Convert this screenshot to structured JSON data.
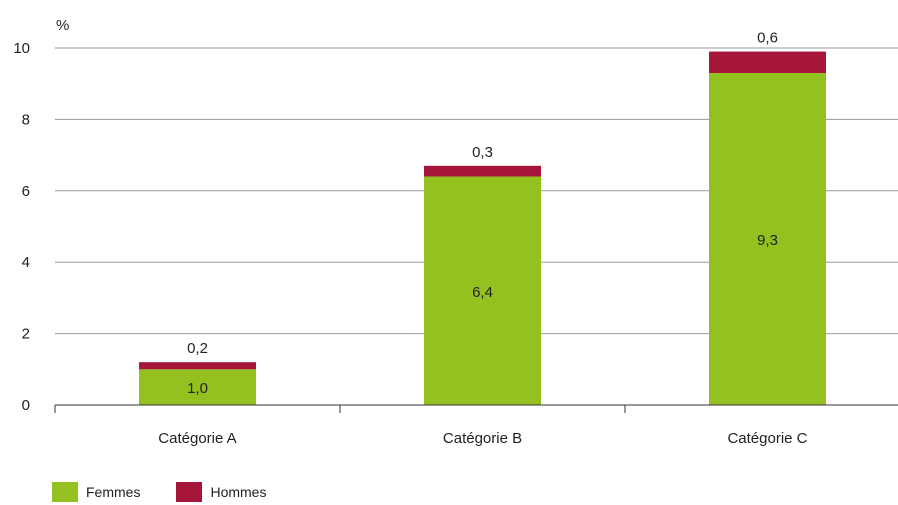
{
  "chart_data": {
    "type": "bar",
    "stacked": true,
    "categories": [
      "Catégorie A",
      "Catégorie B",
      "Catégorie C"
    ],
    "series": [
      {
        "name": "Femmes",
        "values": [
          1.0,
          6.4,
          9.3
        ],
        "labels": [
          "1,0",
          "6,4",
          "9,3"
        ],
        "color": "#94c11f"
      },
      {
        "name": "Hommes",
        "values": [
          0.2,
          0.3,
          0.6
        ],
        "labels": [
          "0,2",
          "0,3",
          "0,6"
        ],
        "color": "#a6163a"
      }
    ],
    "ylabel": "%",
    "ylim": [
      0,
      10
    ],
    "yticks": [
      "0",
      "2",
      "4",
      "6",
      "8",
      "10"
    ],
    "grid": true,
    "legend_position": "bottom-left"
  }
}
